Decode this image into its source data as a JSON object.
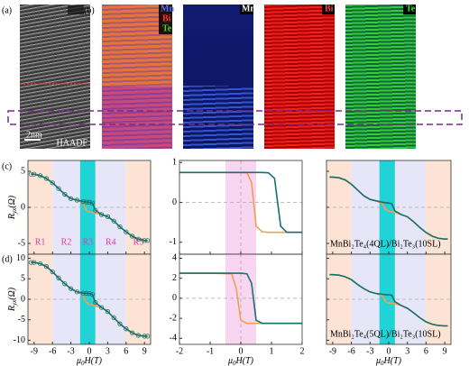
{
  "figure": {
    "panels": [
      "(a)",
      "(b)",
      "(c)",
      "(d)"
    ],
    "scale_bar": "2nm",
    "haadf": "HAADF",
    "mix_labels": [
      "Mn",
      "Bi",
      "Te"
    ],
    "mn": "Mn",
    "bi": "Bi",
    "te": "Te"
  },
  "chart_data": [
    {
      "type": "line",
      "xlim": [
        -10,
        10
      ],
      "xticks": [
        -9,
        -6,
        -3,
        0,
        3,
        6,
        9
      ],
      "xtick_labels": false,
      "ylim": [
        -6.5,
        6.5
      ],
      "yticks": [
        5,
        0,
        -5
      ],
      "ytick_labels": true,
      "ylabel": [
        "R",
        "yx",
        "(Ω)"
      ],
      "regions": [
        {
          "from": -10,
          "to": -6,
          "color": "#fde3d3",
          "label": "R1"
        },
        {
          "from": -6,
          "to": -1.5,
          "color": "#e6e6f8",
          "label": "R2"
        },
        {
          "from": -1.5,
          "to": 1,
          "color": "#1fd3d6",
          "label": "R3"
        },
        {
          "from": 1,
          "to": 6,
          "color": "#e6e6f8",
          "label": "R4"
        },
        {
          "from": 6,
          "to": 10,
          "color": "#fde3d3",
          "label": "R5"
        }
      ],
      "x": [
        -9.5,
        -9,
        -8,
        -7,
        -6,
        -5,
        -4,
        -3,
        -2,
        -1,
        -0.5,
        0,
        0.5,
        1,
        2,
        3,
        4,
        5,
        6,
        7,
        8,
        9,
        9.5
      ],
      "series": [
        {
          "color": "#f0a050",
          "values": [
            4.6,
            4.6,
            4.4,
            4,
            3.4,
            2.6,
            1.8,
            1.2,
            1.0,
            0.6,
            -0.4,
            -0.6,
            -0.7,
            -0.8,
            -1.0,
            -1.3,
            -1.9,
            -2.7,
            -3.4,
            -4,
            -4.4,
            -4.6,
            -4.6
          ]
        },
        {
          "color": "#16706e",
          "marker": "circle",
          "values": [
            4.6,
            4.6,
            4.4,
            4,
            3.4,
            2.6,
            1.8,
            1.2,
            1.0,
            0.8,
            0.75,
            0.7,
            0.6,
            -0.4,
            -1.0,
            -1.3,
            -1.9,
            -2.7,
            -3.4,
            -4,
            -4.4,
            -4.6,
            -4.6
          ]
        }
      ]
    },
    {
      "type": "line",
      "xlim": [
        -2,
        2
      ],
      "xticks": [
        -2,
        -1,
        0,
        1,
        2
      ],
      "xtick_labels": false,
      "ylim": [
        -1.3,
        1.05
      ],
      "yticks": [
        1,
        0,
        -1
      ],
      "ytick_labels": true,
      "regions": [
        {
          "from": -0.5,
          "to": 0.5,
          "color": "#f8d6f2"
        }
      ],
      "x": [
        -2,
        -1,
        0,
        0.2,
        0.35,
        0.5,
        0.7,
        0.9,
        1.1,
        1.3,
        1.5,
        2
      ],
      "series": [
        {
          "color": "#f0a050",
          "values": [
            0.75,
            0.75,
            0.75,
            0.74,
            0.5,
            -0.6,
            -0.74,
            -0.75,
            -0.75,
            -0.75,
            -0.75,
            -0.75
          ]
        },
        {
          "color": "#16706e",
          "values": [
            0.75,
            0.75,
            0.75,
            0.75,
            0.75,
            0.75,
            0.75,
            0.74,
            0.6,
            -0.6,
            -0.75,
            -0.75
          ]
        }
      ]
    },
    {
      "type": "line",
      "xlim": [
        -10,
        10
      ],
      "xticks": [
        -9,
        -6,
        -3,
        0,
        3,
        6,
        9
      ],
      "xtick_labels": false,
      "ylim": [
        -6.5,
        6.5
      ],
      "yticks": [
        5,
        0,
        -5
      ],
      "ytick_labels": false,
      "annotation": "MnBi₂Te₄(4QL)/Bi₂Te₃(10SL)",
      "regions": [
        {
          "from": -10,
          "to": -6,
          "color": "#fde3d3"
        },
        {
          "from": -6,
          "to": -1.5,
          "color": "#e6e6f8"
        },
        {
          "from": -1.5,
          "to": 1,
          "color": "#1fd3d6"
        },
        {
          "from": 1,
          "to": 6,
          "color": "#e6e6f8"
        },
        {
          "from": 6,
          "to": 10,
          "color": "#fde3d3"
        }
      ],
      "x": [
        -9.5,
        -9,
        -8,
        -7,
        -6,
        -5,
        -4,
        -3,
        -2,
        -1,
        -0.5,
        0,
        0.5,
        1,
        2,
        3,
        4,
        5,
        6,
        7,
        8,
        9,
        9.5
      ],
      "series": [
        {
          "color": "#f0a050",
          "values": [
            4.2,
            4.2,
            4.1,
            3.8,
            3.2,
            2.4,
            1.6,
            1.1,
            0.9,
            0.5,
            -0.3,
            -0.5,
            -0.6,
            -0.7,
            -1.0,
            -1.3,
            -2.0,
            -2.8,
            -3.5,
            -4.0,
            -4.3,
            -4.4,
            -4.4
          ]
        },
        {
          "color": "#16706e",
          "values": [
            4.2,
            4.2,
            4.1,
            3.8,
            3.2,
            2.4,
            1.6,
            1.1,
            0.9,
            0.7,
            0.65,
            0.6,
            0.5,
            -0.5,
            -1.0,
            -1.3,
            -2.0,
            -2.8,
            -3.5,
            -4.0,
            -4.3,
            -4.4,
            -4.4
          ]
        }
      ]
    },
    {
      "type": "line",
      "xlim": [
        -10,
        10
      ],
      "xticks": [
        -9,
        -6,
        -3,
        0,
        3,
        6,
        9
      ],
      "xtick_labels": true,
      "xlabel": [
        "μ",
        "0",
        "H(T)"
      ],
      "ylim": [
        -11,
        11
      ],
      "yticks": [
        10,
        5,
        0,
        -5,
        -10
      ],
      "ytick_labels": true,
      "ylabel": [
        "R",
        "yx",
        "(Ω)"
      ],
      "regions": [
        {
          "from": -10,
          "to": -6,
          "color": "#fde3d3"
        },
        {
          "from": -6,
          "to": -1.5,
          "color": "#e6e6f8"
        },
        {
          "from": -1.5,
          "to": 1,
          "color": "#1fd3d6"
        },
        {
          "from": 1,
          "to": 6,
          "color": "#e6e6f8"
        },
        {
          "from": 6,
          "to": 10,
          "color": "#fde3d3"
        }
      ],
      "x": [
        -9.5,
        -9,
        -8,
        -7,
        -6,
        -5,
        -4,
        -3,
        -2,
        -1,
        -0.5,
        0,
        0.5,
        1,
        2,
        3,
        4,
        5,
        6,
        7,
        8,
        9,
        9.5
      ],
      "series": [
        {
          "color": "#f0a050",
          "values": [
            9,
            9,
            8.7,
            8,
            6.7,
            5.2,
            3.8,
            2.6,
            1.8,
            1.0,
            -0.8,
            -1.2,
            -1.4,
            -1.6,
            -2,
            -3,
            -4.5,
            -6,
            -7.2,
            -8.2,
            -8.8,
            -9,
            -9
          ]
        },
        {
          "color": "#16706e",
          "marker": "circle",
          "values": [
            9,
            9,
            8.7,
            8,
            6.7,
            5.2,
            3.8,
            2.6,
            1.8,
            1.5,
            1.45,
            1.4,
            1.2,
            -0.8,
            -2,
            -3,
            -4.5,
            -6,
            -7.2,
            -8.2,
            -8.8,
            -9,
            -9
          ]
        }
      ]
    },
    {
      "type": "line",
      "xlim": [
        -2,
        2
      ],
      "xticks": [
        -2,
        -1,
        0,
        1,
        2
      ],
      "xtick_labels": true,
      "xlabel": [
        "μ",
        "0",
        "H(T)"
      ],
      "ylim": [
        -4.6,
        4.4
      ],
      "yticks": [
        4,
        2,
        0,
        -2,
        -4
      ],
      "ytick_labels": true,
      "regions": [
        {
          "from": -0.5,
          "to": 0.5,
          "color": "#f8d6f2"
        }
      ],
      "x": [
        -2,
        -1,
        -0.3,
        -0.15,
        0,
        0.2,
        0.35,
        0.5,
        0.7,
        1,
        1.5,
        2
      ],
      "series": [
        {
          "color": "#f0a050",
          "values": [
            2.5,
            2.5,
            2.45,
            1.0,
            -2.2,
            -2.5,
            -2.5,
            -2.5,
            -2.5,
            -2.5,
            -2.5,
            -2.5
          ]
        },
        {
          "color": "#16706e",
          "values": [
            2.5,
            2.5,
            2.5,
            2.5,
            2.5,
            2.45,
            1.5,
            -2.2,
            -2.5,
            -2.5,
            -2.5,
            -2.5
          ]
        }
      ]
    },
    {
      "type": "line",
      "xlim": [
        -10,
        10
      ],
      "xticks": [
        -9,
        -6,
        -3,
        0,
        3,
        6,
        9
      ],
      "xtick_labels": true,
      "xlabel": [
        "μ",
        "0",
        "H(T)"
      ],
      "ylim": [
        -11,
        11
      ],
      "yticks": [
        10,
        5,
        0,
        -5,
        -10
      ],
      "ytick_labels": false,
      "annotation": "MnBi₂Te₄(5QL)/Bi₂Te₃(10SL)",
      "regions": [
        {
          "from": -10,
          "to": -6,
          "color": "#fde3d3"
        },
        {
          "from": -6,
          "to": -1.5,
          "color": "#e6e6f8"
        },
        {
          "from": -1.5,
          "to": 1,
          "color": "#1fd3d6"
        },
        {
          "from": 1,
          "to": 6,
          "color": "#e6e6f8"
        },
        {
          "from": 6,
          "to": 10,
          "color": "#fde3d3"
        }
      ],
      "x": [
        -9.5,
        -9,
        -8,
        -7,
        -6,
        -5,
        -4,
        -3,
        -2,
        -1,
        -0.5,
        0,
        0.5,
        1,
        2,
        3,
        4,
        5,
        6,
        7,
        8,
        9,
        9.5
      ],
      "series": [
        {
          "color": "#f0a050",
          "values": [
            6,
            6,
            5.9,
            5.5,
            4.8,
            3.6,
            2.6,
            1.8,
            1.4,
            0.8,
            -0.6,
            -0.9,
            -1.0,
            -1.1,
            -1.5,
            -2.2,
            -3.3,
            -4.5,
            -5.5,
            -6.1,
            -6.4,
            -6.5,
            -6.5
          ]
        },
        {
          "color": "#16706e",
          "values": [
            6,
            6,
            5.9,
            5.5,
            4.8,
            3.6,
            2.6,
            1.8,
            1.4,
            1.2,
            1.15,
            1.1,
            1.0,
            -0.6,
            -1.5,
            -2.2,
            -3.3,
            -4.5,
            -5.5,
            -6.1,
            -6.4,
            -6.5,
            -6.5
          ]
        }
      ]
    }
  ]
}
